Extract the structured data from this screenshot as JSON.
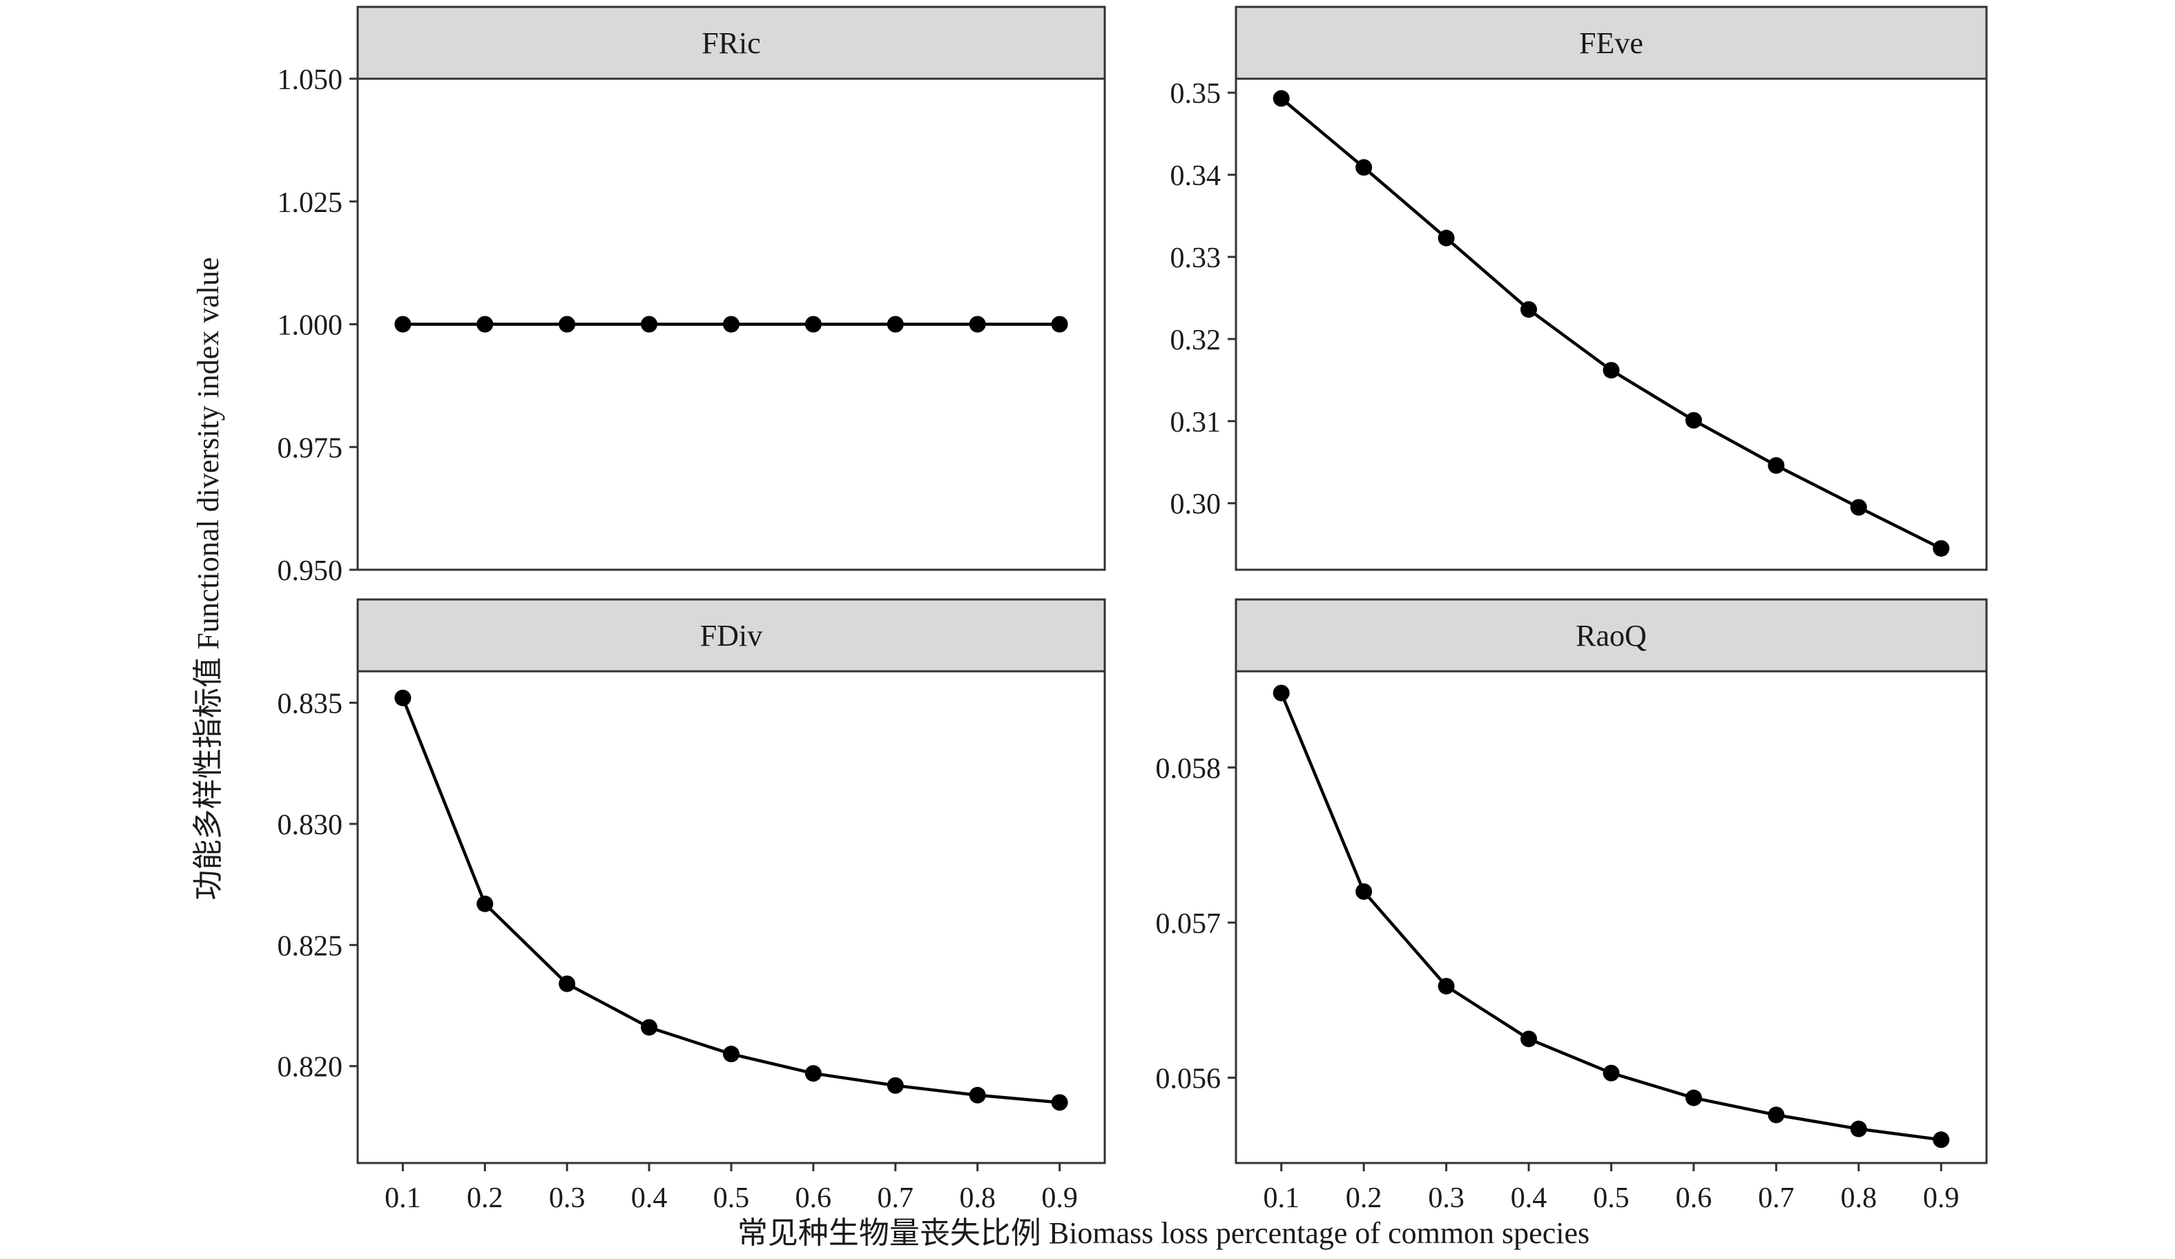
{
  "colors": {
    "background": "#ffffff",
    "strip_fill": "#d9d9d9",
    "frame": "#333333",
    "line": "#000000",
    "point": "#000000"
  },
  "chart_data": {
    "type": "line",
    "layout": "facet 2x2, independent y scales",
    "ylabel": "功能多样性指标值 Functional diversity index value",
    "xlabel": "常见种生物量丧失比例 Biomass loss percentage of common species",
    "x": [
      0.1,
      0.2,
      0.3,
      0.4,
      0.5,
      0.6,
      0.7,
      0.8,
      0.9
    ],
    "x_ticks": [
      "0.1",
      "0.2",
      "0.3",
      "0.4",
      "0.5",
      "0.6",
      "0.7",
      "0.8",
      "0.9"
    ],
    "grid": false,
    "legend": "none",
    "panels": [
      {
        "id": "fric",
        "title": "FRic",
        "ylim": [
          0.95,
          1.05
        ],
        "y_ticks": [
          0.95,
          0.975,
          1.0,
          1.025,
          1.05
        ],
        "y_tick_labels": [
          "0.950",
          "0.975",
          "1.000",
          "1.025",
          "1.050"
        ],
        "values": [
          1.0,
          1.0,
          1.0,
          1.0,
          1.0,
          1.0,
          1.0,
          1.0,
          1.0
        ]
      },
      {
        "id": "feve",
        "title": "FEve",
        "ylim": [
          0.2919,
          0.3517
        ],
        "y_ticks": [
          0.3,
          0.31,
          0.32,
          0.33,
          0.34,
          0.35
        ],
        "y_tick_labels": [
          "0.30",
          "0.31",
          "0.32",
          "0.33",
          "0.34",
          "0.35"
        ],
        "values": [
          0.3493,
          0.3409,
          0.3323,
          0.3236,
          0.3162,
          0.3101,
          0.3046,
          0.2995,
          0.2945
        ]
      },
      {
        "id": "fdiv",
        "title": "FDiv",
        "ylim": [
          0.816,
          0.8363
        ],
        "y_ticks": [
          0.82,
          0.825,
          0.83,
          0.835
        ],
        "y_tick_labels": [
          "0.820",
          "0.825",
          "0.830",
          "0.835"
        ],
        "values": [
          0.8352,
          0.8267,
          0.8234,
          0.8216,
          0.8205,
          0.8197,
          0.8192,
          0.8188,
          0.8185
        ]
      },
      {
        "id": "raoq",
        "title": "RaoQ",
        "ylim": [
          0.05545,
          0.05862
        ],
        "y_ticks": [
          0.056,
          0.057,
          0.058
        ],
        "y_tick_labels": [
          "0.056",
          "0.057",
          "0.058"
        ],
        "values": [
          0.05848,
          0.0572,
          0.05659,
          0.05625,
          0.05603,
          0.05587,
          0.05576,
          0.05567,
          0.0556
        ]
      }
    ]
  }
}
